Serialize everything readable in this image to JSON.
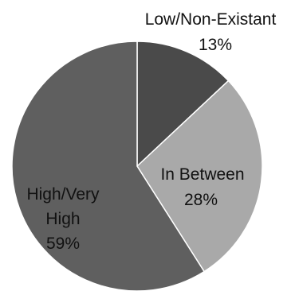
{
  "chart_data": {
    "type": "pie",
    "title": "",
    "slices": [
      {
        "label": "Low/Non-Existant",
        "value": 13,
        "value_label": "13%",
        "color": "#4a4a4a"
      },
      {
        "label": "In Between",
        "value": 28,
        "value_label": "28%",
        "color": "#a9a9a9"
      },
      {
        "label": "High/Very High",
        "value": 59,
        "value_label": "59%",
        "color": "#5f5f5f"
      }
    ],
    "legend": "none",
    "start": "top, clockwise",
    "colors": {
      "background": "#ffffff",
      "edge": "#ffffff"
    }
  }
}
